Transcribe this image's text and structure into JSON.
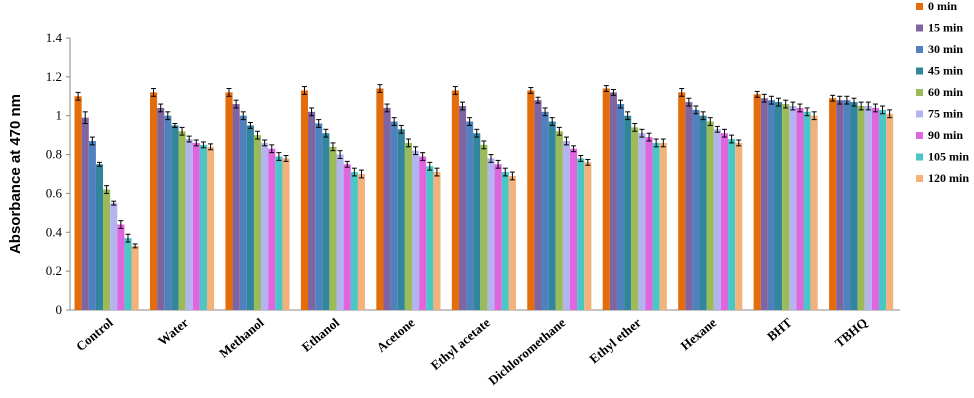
{
  "chart_data": {
    "type": "bar",
    "y_label": "Absorbance at 470 nm",
    "categories": [
      "Control",
      "Water",
      "Methanol",
      "Ethanol",
      "Acetone",
      "Ethyl acetate",
      "Dichloromethane",
      "Ethyl ether",
      "Hexane",
      "BHT",
      "TBHQ"
    ],
    "series": [
      {
        "name": "0 min",
        "color": "#e46c0a",
        "values": [
          1.1,
          1.12,
          1.12,
          1.13,
          1.14,
          1.13,
          1.13,
          1.14,
          1.12,
          1.11,
          1.09
        ],
        "errors": [
          0.02,
          0.02,
          0.02,
          0.02,
          0.02,
          0.02,
          0.015,
          0.015,
          0.02,
          0.015,
          0.015
        ]
      },
      {
        "name": "15 min",
        "color": "#8064a2",
        "values": [
          0.99,
          1.04,
          1.06,
          1.02,
          1.04,
          1.05,
          1.08,
          1.12,
          1.07,
          1.09,
          1.08
        ],
        "errors": [
          0.03,
          0.02,
          0.02,
          0.02,
          0.02,
          0.02,
          0.015,
          0.015,
          0.02,
          0.02,
          0.02
        ]
      },
      {
        "name": "30 min",
        "color": "#4f81bd",
        "values": [
          0.87,
          1.0,
          1.0,
          0.96,
          0.97,
          0.97,
          1.02,
          1.06,
          1.03,
          1.08,
          1.08
        ],
        "errors": [
          0.02,
          0.02,
          0.02,
          0.02,
          0.02,
          0.02,
          0.02,
          0.02,
          0.02,
          0.02,
          0.02
        ]
      },
      {
        "name": "45 min",
        "color": "#31859c",
        "values": [
          0.75,
          0.95,
          0.95,
          0.91,
          0.93,
          0.91,
          0.97,
          1.0,
          1.0,
          1.07,
          1.07
        ],
        "errors": [
          0.01,
          0.01,
          0.015,
          0.02,
          0.02,
          0.02,
          0.02,
          0.02,
          0.02,
          0.02,
          0.02
        ]
      },
      {
        "name": "60 min",
        "color": "#9bbb59",
        "values": [
          0.62,
          0.92,
          0.9,
          0.84,
          0.86,
          0.85,
          0.92,
          0.94,
          0.97,
          1.06,
          1.05
        ],
        "errors": [
          0.02,
          0.02,
          0.02,
          0.02,
          0.02,
          0.02,
          0.02,
          0.02,
          0.02,
          0.02,
          0.02
        ]
      },
      {
        "name": "75 min",
        "color": "#b3b3f0",
        "values": [
          0.55,
          0.88,
          0.86,
          0.8,
          0.82,
          0.78,
          0.87,
          0.91,
          0.93,
          1.05,
          1.05
        ],
        "errors": [
          0.01,
          0.015,
          0.015,
          0.02,
          0.02,
          0.02,
          0.02,
          0.02,
          0.015,
          0.02,
          0.02
        ]
      },
      {
        "name": "90 min",
        "color": "#e066e0",
        "values": [
          0.44,
          0.86,
          0.83,
          0.75,
          0.79,
          0.75,
          0.83,
          0.89,
          0.91,
          1.04,
          1.04
        ],
        "errors": [
          0.02,
          0.015,
          0.02,
          0.015,
          0.02,
          0.02,
          0.015,
          0.02,
          0.02,
          0.02,
          0.02
        ]
      },
      {
        "name": "105 min",
        "color": "#4bc6c6",
        "values": [
          0.37,
          0.85,
          0.79,
          0.71,
          0.74,
          0.71,
          0.78,
          0.86,
          0.88,
          1.02,
          1.03
        ],
        "errors": [
          0.02,
          0.015,
          0.02,
          0.02,
          0.02,
          0.02,
          0.015,
          0.02,
          0.02,
          0.02,
          0.02
        ]
      },
      {
        "name": "120 min",
        "color": "#f2b27a",
        "values": [
          0.33,
          0.84,
          0.78,
          0.7,
          0.71,
          0.69,
          0.76,
          0.86,
          0.86,
          1.0,
          1.01
        ],
        "errors": [
          0.01,
          0.015,
          0.015,
          0.02,
          0.02,
          0.02,
          0.015,
          0.02,
          0.015,
          0.02,
          0.02
        ]
      }
    ],
    "ylim": [
      0,
      1.4
    ],
    "yticks": [
      0,
      0.2,
      0.4,
      0.6,
      0.8,
      1,
      1.2,
      1.4
    ],
    "grid": false
  }
}
